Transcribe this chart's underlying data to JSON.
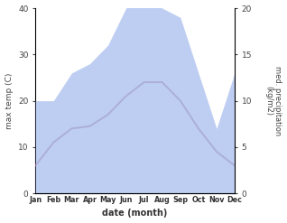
{
  "months": [
    "Jan",
    "Feb",
    "Mar",
    "Apr",
    "May",
    "Jun",
    "Jul",
    "Aug",
    "Sep",
    "Oct",
    "Nov",
    "Dec"
  ],
  "max_temp": [
    6,
    11,
    14,
    14.5,
    17,
    21,
    24,
    24,
    20,
    14,
    9,
    6
  ],
  "precipitation": [
    10,
    10,
    13,
    14,
    16,
    20,
    22,
    20,
    19,
    13,
    7,
    13
  ],
  "temp_color": "#8B3A5A",
  "precip_color": "#b3c6f0",
  "title": "",
  "xlabel": "date (month)",
  "ylabel_left": "max temp (C)",
  "ylabel_right": "med. precipitation\n(kg/m2)",
  "ylim_left": [
    0,
    40
  ],
  "ylim_right": [
    0,
    20
  ],
  "bg_color": "#ffffff",
  "line_width": 1.5
}
